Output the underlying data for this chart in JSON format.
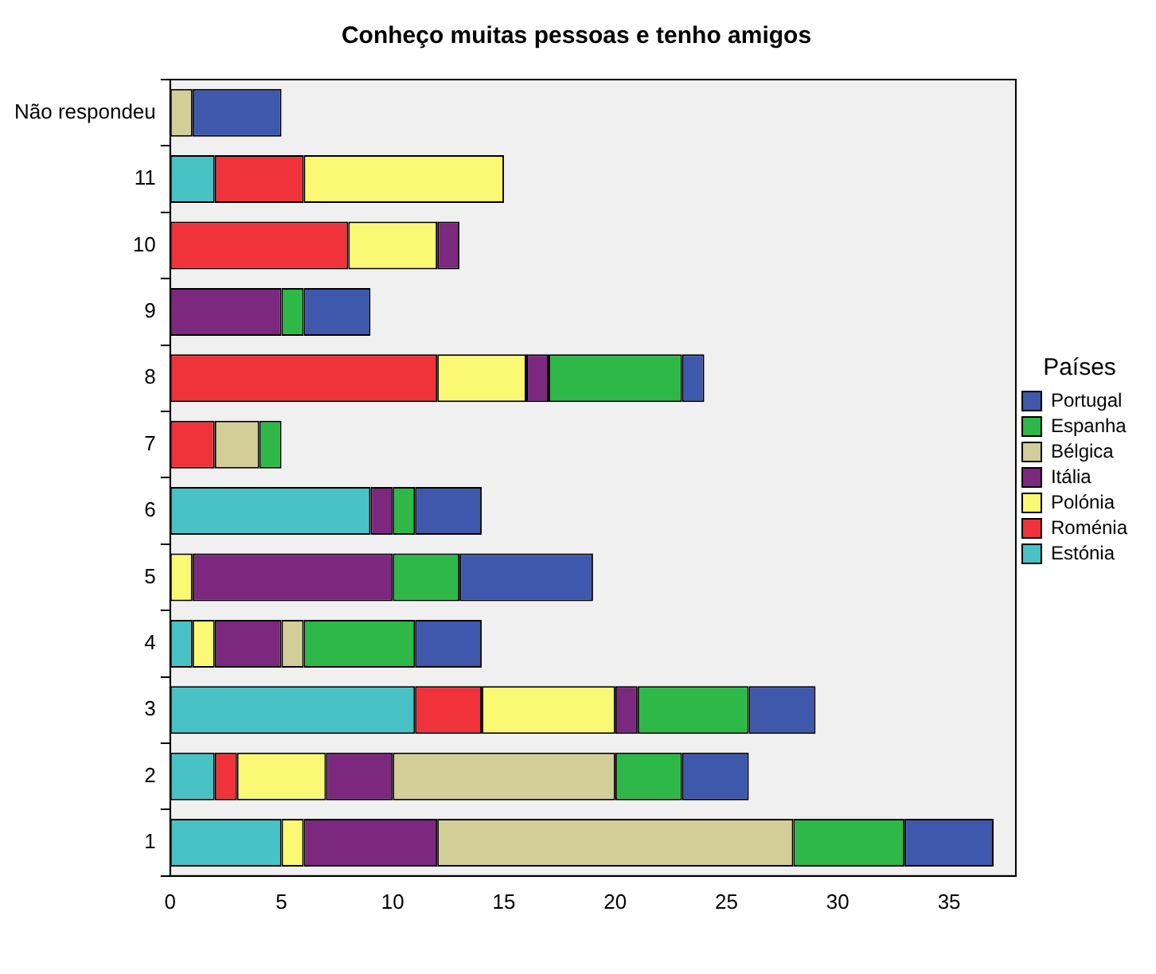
{
  "chart_data": {
    "type": "bar",
    "orientation": "horizontal",
    "stacked": true,
    "title": "Conheço muitas pessoas e tenho amigos",
    "legend_title": "Países",
    "legend": "right",
    "grid": false,
    "categories": [
      "Não respondeu",
      "11",
      "10",
      "9",
      "8",
      "7",
      "6",
      "5",
      "4",
      "3",
      "2",
      "1"
    ],
    "xlim": [
      0,
      38
    ],
    "xticks": [
      0,
      5,
      10,
      15,
      20,
      25,
      30,
      35
    ],
    "series": [
      {
        "name": "Estónia",
        "color": "#48c2c5",
        "values": [
          0,
          2,
          0,
          0,
          0,
          0,
          9,
          0,
          1,
          11,
          2,
          5
        ]
      },
      {
        "name": "Roménia",
        "color": "#f0323a",
        "values": [
          0,
          4,
          8,
          0,
          12,
          2,
          0,
          0,
          0,
          3,
          1,
          0
        ]
      },
      {
        "name": "Polónia",
        "color": "#fbf873",
        "values": [
          0,
          9,
          4,
          0,
          4,
          0,
          0,
          1,
          1,
          6,
          4,
          1
        ]
      },
      {
        "name": "Itália",
        "color": "#7b287e",
        "values": [
          0,
          0,
          1,
          5,
          1,
          0,
          1,
          9,
          3,
          1,
          3,
          6
        ]
      },
      {
        "name": "Bélgica",
        "color": "#d3ce97",
        "values": [
          1,
          0,
          0,
          0,
          0,
          2,
          0,
          0,
          1,
          0,
          10,
          16
        ]
      },
      {
        "name": "Espanha",
        "color": "#2eb848",
        "values": [
          0,
          0,
          0,
          1,
          6,
          1,
          1,
          3,
          5,
          5,
          3,
          5
        ]
      },
      {
        "name": "Portugal",
        "color": "#3e58ac",
        "values": [
          4,
          0,
          0,
          3,
          1,
          0,
          3,
          6,
          3,
          3,
          3,
          4
        ]
      }
    ]
  }
}
